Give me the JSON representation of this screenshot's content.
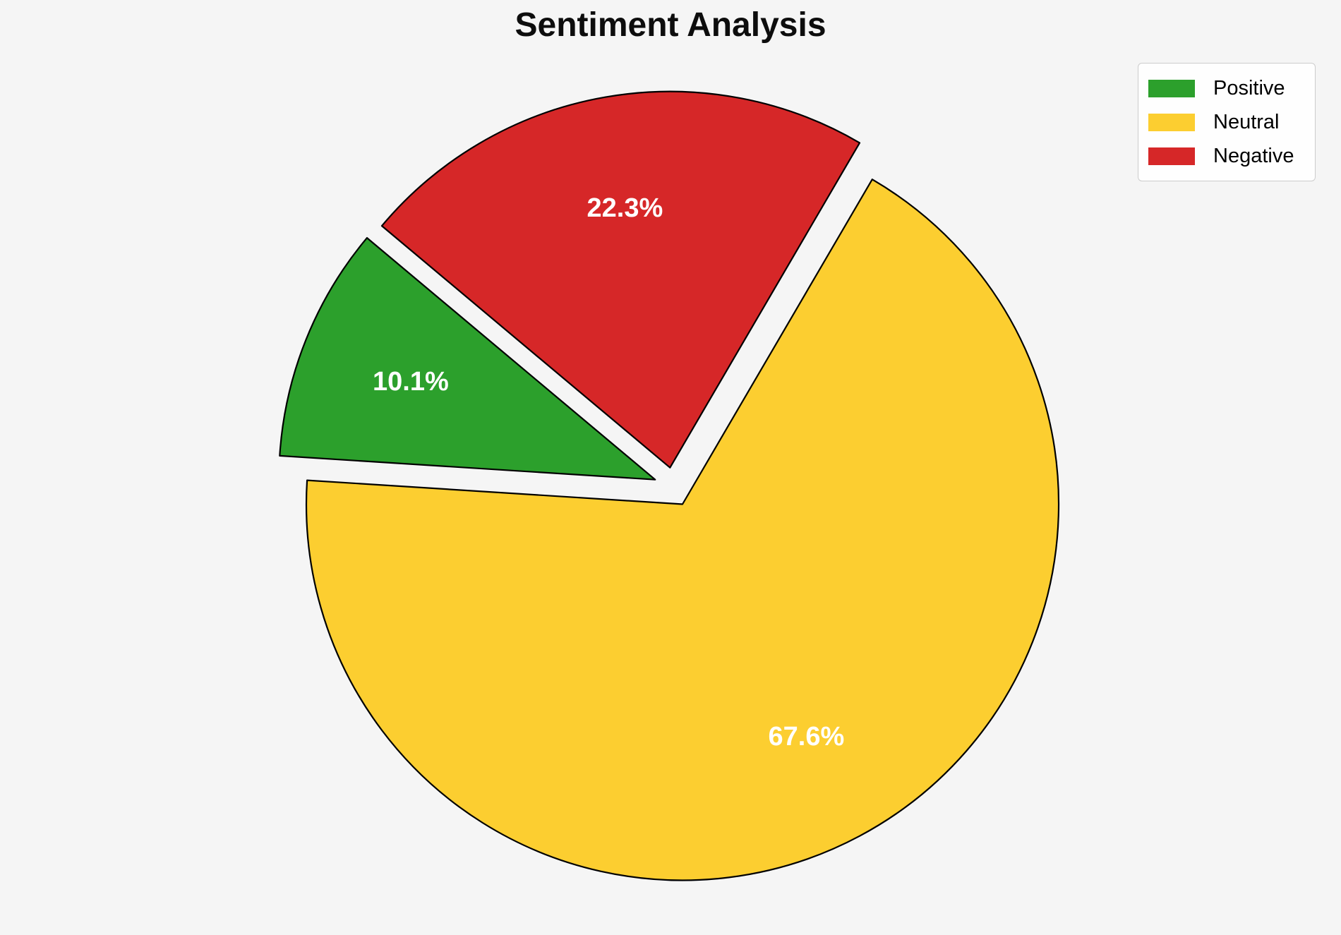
{
  "title": "Sentiment Analysis",
  "chart_data": {
    "type": "pie",
    "title": "Sentiment Analysis",
    "categories": [
      "Positive",
      "Neutral",
      "Negative"
    ],
    "values": [
      10.1,
      67.6,
      22.3
    ],
    "percent_labels": [
      "10.1%",
      "67.6%",
      "22.3%"
    ],
    "colors": [
      "#2ca02c",
      "#fcce30",
      "#d62728"
    ],
    "startangle": 140,
    "counterclock": true,
    "explode": [
      0.052,
      0.052,
      0.052
    ],
    "pctdistance": 0.7,
    "edge_color": "#000000",
    "edge_width": 2.2,
    "label_color": "#ffffff",
    "background_color": "#f5f5f5",
    "legend_position": "upper right",
    "legend_labels": [
      "Positive",
      "Neutral",
      "Negative"
    ]
  }
}
